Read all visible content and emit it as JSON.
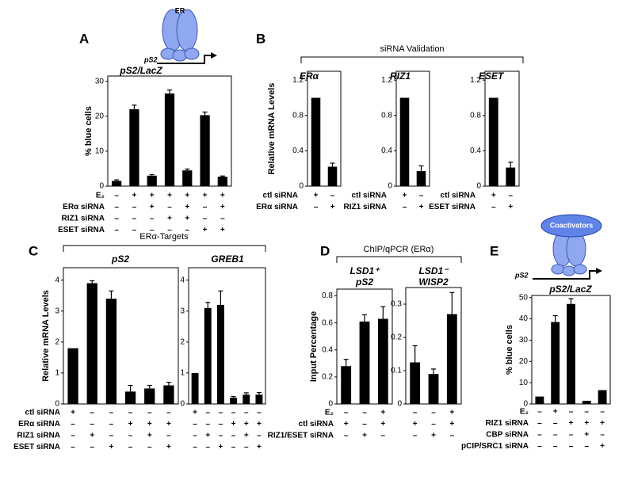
{
  "panel_labels": [
    "A",
    "B",
    "C",
    "D",
    "E"
  ],
  "group_titles": [
    "siRNA Validation",
    "ERα-Targets",
    "ChIP/qPCR (ERα)"
  ],
  "diagram_labels": [
    "ER",
    "pS2",
    "Coactivators",
    "pS2"
  ],
  "chart_data": [
    {
      "type": "bar",
      "title": "pS2/LacZ",
      "ylabel": "% blue cells",
      "ylim": [
        0,
        31.5
      ],
      "yticks": [
        0,
        10,
        20,
        30
      ],
      "color": "#000000",
      "values": [
        1.5,
        22,
        3,
        26.5,
        4.5,
        20.3,
        2.7
      ],
      "errors": [
        0.3,
        1.2,
        0.3,
        1,
        0.4,
        0.9,
        0.2
      ],
      "condition_labels": [
        "E₂",
        "ERα siRNA",
        "RIZ1 siRNA",
        "ESET siRNA"
      ],
      "condition_marks": [
        [
          "–",
          "+",
          "+",
          "+",
          "+",
          "+",
          "+"
        ],
        [
          "–",
          "–",
          "+",
          "–",
          "+",
          "–",
          "+"
        ],
        [
          "–",
          "–",
          "–",
          "+",
          "+",
          "–",
          "–"
        ],
        [
          "–",
          "–",
          "–",
          "–",
          "–",
          "+",
          "+"
        ]
      ]
    },
    {
      "type": "bar",
      "title": "ERα",
      "ylabel": "Relative mRNA Levels",
      "ylim": [
        0,
        1.3
      ],
      "yticks": [
        0,
        0.4,
        0.8,
        1.2
      ],
      "color": "#000000",
      "values": [
        1,
        0.22
      ],
      "errors": [
        null,
        0.04
      ],
      "condition_labels": [
        "ctl siRNA",
        "ERα siRNA"
      ],
      "condition_marks": [
        [
          "+",
          "–"
        ],
        [
          "–",
          "+"
        ]
      ]
    },
    {
      "type": "bar",
      "title": "RIZ1",
      "ylim": [
        0,
        1.3
      ],
      "yticks": [
        0,
        0.4,
        0.8,
        1.2
      ],
      "color": "#000000",
      "values": [
        1,
        0.17
      ],
      "errors": [
        null,
        0.06
      ],
      "condition_labels": [
        "ctl siRNA",
        "RIZ1 siRNA"
      ],
      "condition_marks": [
        [
          "+",
          "–"
        ],
        [
          "–",
          "+"
        ]
      ]
    },
    {
      "type": "bar",
      "title": "ESET",
      "ylim": [
        0,
        1.3
      ],
      "yticks": [
        0,
        0.4,
        0.8,
        1.2
      ],
      "color": "#000000",
      "values": [
        1,
        0.21
      ],
      "errors": [
        null,
        0.06
      ],
      "condition_labels": [
        "ctl siRNA",
        "ESET siRNA"
      ],
      "condition_marks": [
        [
          "+",
          "–"
        ],
        [
          "–",
          "+"
        ]
      ]
    },
    {
      "type": "bar",
      "title": "pS2",
      "ylabel": "Relative mRNA Levels",
      "ylim": [
        0,
        4.4
      ],
      "yticks": [
        0,
        1,
        2,
        3,
        4
      ],
      "color": "#000000",
      "values": [
        1.8,
        3.9,
        3.4,
        0.4,
        0.5,
        0.6
      ],
      "errors": [
        null,
        0.08,
        0.25,
        0.2,
        0.1,
        0.1
      ],
      "condition_labels": [
        "ctl siRNA",
        "ERα siRNA",
        "RIZ1 siRNA",
        "ESET siRNA"
      ],
      "condition_marks": [
        [
          "+",
          "–",
          "–",
          "–",
          "–",
          "–"
        ],
        [
          "–",
          "–",
          "–",
          "+",
          "+",
          "+"
        ],
        [
          "–",
          "+",
          "–",
          "–",
          "+",
          "–"
        ],
        [
          "–",
          "–",
          "+",
          "–",
          "–",
          "+"
        ]
      ]
    },
    {
      "type": "bar",
      "title": "GREB1",
      "ylim": [
        0,
        4.4
      ],
      "yticks": [
        0,
        1,
        2,
        3,
        4
      ],
      "color": "#000000",
      "values": [
        1,
        3.1,
        3.2,
        0.2,
        0.3,
        0.3
      ],
      "errors": [
        null,
        0.18,
        0.45,
        0.04,
        0.06,
        0.07
      ],
      "condition_marks": [
        [
          "+",
          "–",
          "–",
          "–",
          "–",
          "–"
        ],
        [
          "–",
          "–",
          "–",
          "+",
          "+",
          "+"
        ],
        [
          "–",
          "+",
          "–",
          "–",
          "+",
          "–"
        ],
        [
          "–",
          "–",
          "+",
          "–",
          "–",
          "+"
        ]
      ]
    },
    {
      "type": "bar",
      "title": [
        "LSD1⁺",
        "pS2"
      ],
      "ylabel": "Input Percentage",
      "ylim": [
        0,
        0.85
      ],
      "yticks": [
        0,
        0.2,
        0.4,
        0.6,
        0.8
      ],
      "color": "#000000",
      "values": [
        0.28,
        0.61,
        0.63
      ],
      "errors": [
        0.05,
        0.05,
        0.09
      ],
      "condition_labels": [
        "E₂",
        "ctl siRNA",
        "RIZ1/ESET siRNA"
      ],
      "condition_marks": [
        [
          "–",
          "–",
          "+"
        ],
        [
          "+",
          "–",
          "+"
        ],
        [
          "–",
          "+",
          "–"
        ]
      ]
    },
    {
      "type": "bar",
      "title": [
        "LSD1⁻",
        "WISP2"
      ],
      "ylim": [
        0,
        0.35
      ],
      "yticks": [
        0,
        0.1,
        0.2,
        0.3
      ],
      "color": "#000000",
      "values": [
        0.125,
        0.09,
        0.27
      ],
      "errors": [
        0.05,
        0.015,
        0.065
      ],
      "condition_marks": [
        [
          "–",
          "–",
          "+"
        ],
        [
          "+",
          "–",
          "+"
        ],
        [
          "–",
          "+",
          "–"
        ]
      ]
    },
    {
      "type": "bar",
      "title": "pS2/LacZ",
      "ylabel": "% blue cells",
      "ylim": [
        0,
        51
      ],
      "yticks": [
        0,
        10,
        20,
        30,
        40,
        50
      ],
      "color": "#000000",
      "values": [
        3.5,
        38.5,
        47,
        1.5,
        6.5
      ],
      "errors": [
        null,
        3,
        2.5,
        null,
        null
      ],
      "condition_labels": [
        "E₂",
        "RIZ1 siRNA",
        "CBP siRNA",
        "pCIP/SRC1 siRNA"
      ],
      "condition_marks": [
        [
          "–",
          "+",
          "–",
          "–",
          "–"
        ],
        [
          "–",
          "–",
          "+",
          "+",
          "+"
        ],
        [
          "–",
          "–",
          "–",
          "+",
          "–"
        ],
        [
          "–",
          "–",
          "–",
          "–",
          "+"
        ]
      ]
    }
  ]
}
